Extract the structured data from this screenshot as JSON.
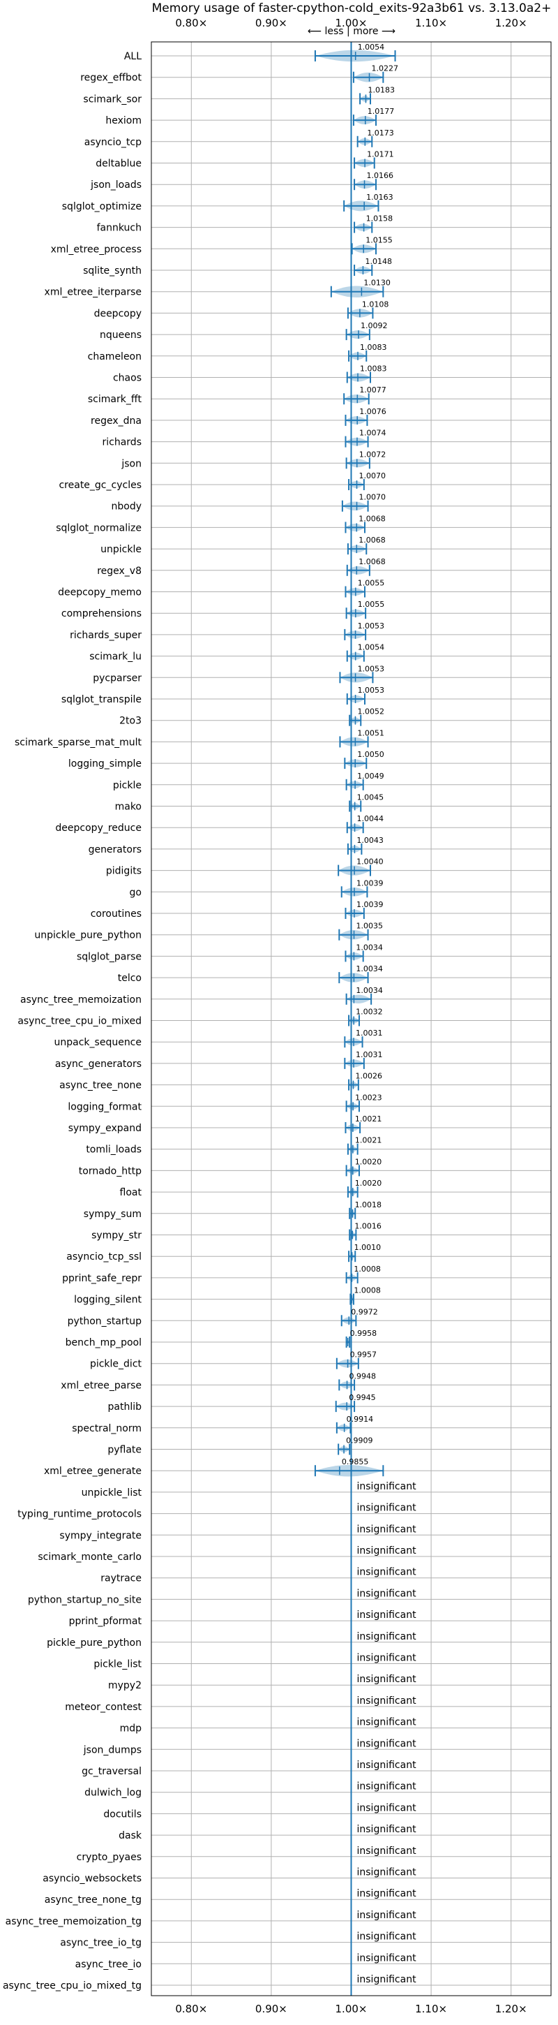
{
  "chart_data": {
    "type": "violin",
    "title": "Memory usage of faster-cpython-cold_exits-92a3b61 vs. 3.13.0a2+",
    "subtitle": "⟵ less | more ⟶",
    "xlim": [
      0.75,
      1.25
    ],
    "x_ticks": [
      0.8,
      0.9,
      1.0,
      1.1,
      1.2
    ],
    "x_tick_labels": [
      "0.80×",
      "0.90×",
      "1.00×",
      "1.10×",
      "1.20×"
    ],
    "reference_line": 1.0,
    "grid": true,
    "benchmarks": [
      {
        "name": "ALL",
        "value": 1.0054,
        "label": "1.0054",
        "low": 0.955,
        "high": 1.055
      },
      {
        "name": "regex_effbot",
        "value": 1.0227,
        "label": "1.0227",
        "low": 1.003,
        "high": 1.04
      },
      {
        "name": "scimark_sor",
        "value": 1.0183,
        "label": "1.0183",
        "low": 1.011,
        "high": 1.024
      },
      {
        "name": "hexiom",
        "value": 1.0177,
        "label": "1.0177",
        "low": 1.003,
        "high": 1.031
      },
      {
        "name": "asyncio_tcp",
        "value": 1.0173,
        "label": "1.0173",
        "low": 1.008,
        "high": 1.026
      },
      {
        "name": "deltablue",
        "value": 1.0171,
        "label": "1.0171",
        "low": 1.004,
        "high": 1.029
      },
      {
        "name": "json_loads",
        "value": 1.0166,
        "label": "1.0166",
        "low": 1.004,
        "high": 1.031
      },
      {
        "name": "sqlglot_optimize",
        "value": 1.0163,
        "label": "1.0163",
        "low": 0.991,
        "high": 1.034
      },
      {
        "name": "fannkuch",
        "value": 1.0158,
        "label": "1.0158",
        "low": 1.004,
        "high": 1.026
      },
      {
        "name": "xml_etree_process",
        "value": 1.0155,
        "label": "1.0155",
        "low": 1.001,
        "high": 1.031
      },
      {
        "name": "sqlite_synth",
        "value": 1.0148,
        "label": "1.0148",
        "low": 1.004,
        "high": 1.026
      },
      {
        "name": "xml_etree_iterparse",
        "value": 1.013,
        "label": "1.0130",
        "low": 0.975,
        "high": 1.04
      },
      {
        "name": "deepcopy",
        "value": 1.0108,
        "label": "1.0108",
        "low": 0.996,
        "high": 1.027
      },
      {
        "name": "nqueens",
        "value": 1.0092,
        "label": "1.0092",
        "low": 0.994,
        "high": 1.023
      },
      {
        "name": "chameleon",
        "value": 1.0083,
        "label": "1.0083",
        "low": 0.997,
        "high": 1.019
      },
      {
        "name": "chaos",
        "value": 1.0083,
        "label": "1.0083",
        "low": 0.995,
        "high": 1.024
      },
      {
        "name": "scimark_fft",
        "value": 1.0077,
        "label": "1.0077",
        "low": 0.991,
        "high": 1.022
      },
      {
        "name": "regex_dna",
        "value": 1.0076,
        "label": "1.0076",
        "low": 0.993,
        "high": 1.02
      },
      {
        "name": "richards",
        "value": 1.0074,
        "label": "1.0074",
        "low": 0.993,
        "high": 1.021
      },
      {
        "name": "json",
        "value": 1.0072,
        "label": "1.0072",
        "low": 0.994,
        "high": 1.023
      },
      {
        "name": "create_gc_cycles",
        "value": 1.007,
        "label": "1.0070",
        "low": 0.997,
        "high": 1.016
      },
      {
        "name": "nbody",
        "value": 1.007,
        "label": "1.0070",
        "low": 0.989,
        "high": 1.021
      },
      {
        "name": "sqlglot_normalize",
        "value": 1.0068,
        "label": "1.0068",
        "low": 0.993,
        "high": 1.017
      },
      {
        "name": "unpickle",
        "value": 1.0068,
        "label": "1.0068",
        "low": 0.996,
        "high": 1.019
      },
      {
        "name": "regex_v8",
        "value": 1.0068,
        "label": "1.0068",
        "low": 0.995,
        "high": 1.023
      },
      {
        "name": "deepcopy_memo",
        "value": 1.0055,
        "label": "1.0055",
        "low": 0.993,
        "high": 1.017
      },
      {
        "name": "comprehensions",
        "value": 1.0055,
        "label": "1.0055",
        "low": 0.994,
        "high": 1.018
      },
      {
        "name": "richards_super",
        "value": 1.0053,
        "label": "1.0053",
        "low": 0.992,
        "high": 1.018
      },
      {
        "name": "scimark_lu",
        "value": 1.0054,
        "label": "1.0054",
        "low": 0.995,
        "high": 1.016
      },
      {
        "name": "pycparser",
        "value": 1.0053,
        "label": "1.0053",
        "low": 0.986,
        "high": 1.027
      },
      {
        "name": "sqlglot_transpile",
        "value": 1.0053,
        "label": "1.0053",
        "low": 0.995,
        "high": 1.017
      },
      {
        "name": "2to3",
        "value": 1.0052,
        "label": "1.0052",
        "low": 0.998,
        "high": 1.012
      },
      {
        "name": "scimark_sparse_mat_mult",
        "value": 1.0051,
        "label": "1.0051",
        "low": 0.986,
        "high": 1.021
      },
      {
        "name": "logging_simple",
        "value": 1.005,
        "label": "1.0050",
        "low": 0.992,
        "high": 1.019
      },
      {
        "name": "pickle",
        "value": 1.0049,
        "label": "1.0049",
        "low": 0.994,
        "high": 1.015
      },
      {
        "name": "mako",
        "value": 1.0045,
        "label": "1.0045",
        "low": 0.998,
        "high": 1.012
      },
      {
        "name": "deepcopy_reduce",
        "value": 1.0044,
        "label": "1.0044",
        "low": 0.995,
        "high": 1.015
      },
      {
        "name": "generators",
        "value": 1.0043,
        "label": "1.0043",
        "low": 0.996,
        "high": 1.013
      },
      {
        "name": "pidigits",
        "value": 1.004,
        "label": "1.0040",
        "low": 0.984,
        "high": 1.024
      },
      {
        "name": "go",
        "value": 1.0039,
        "label": "1.0039",
        "low": 0.988,
        "high": 1.02
      },
      {
        "name": "coroutines",
        "value": 1.0039,
        "label": "1.0039",
        "low": 0.993,
        "high": 1.016
      },
      {
        "name": "unpickle_pure_python",
        "value": 1.0035,
        "label": "1.0035",
        "low": 0.985,
        "high": 1.021
      },
      {
        "name": "sqlglot_parse",
        "value": 1.0034,
        "label": "1.0034",
        "low": 0.993,
        "high": 1.015
      },
      {
        "name": "telco",
        "value": 1.0034,
        "label": "1.0034",
        "low": 0.985,
        "high": 1.021
      },
      {
        "name": "async_tree_memoization",
        "value": 1.0034,
        "label": "1.0034",
        "low": 0.994,
        "high": 1.025
      },
      {
        "name": "async_tree_cpu_io_mixed",
        "value": 1.0032,
        "label": "1.0032",
        "low": 0.997,
        "high": 1.01
      },
      {
        "name": "unpack_sequence",
        "value": 1.0031,
        "label": "1.0031",
        "low": 0.992,
        "high": 1.014
      },
      {
        "name": "async_generators",
        "value": 1.0031,
        "label": "1.0031",
        "low": 0.992,
        "high": 1.016
      },
      {
        "name": "async_tree_none",
        "value": 1.0026,
        "label": "1.0026",
        "low": 0.997,
        "high": 1.009
      },
      {
        "name": "logging_format",
        "value": 1.0023,
        "label": "1.0023",
        "low": 0.994,
        "high": 1.01
      },
      {
        "name": "sympy_expand",
        "value": 1.0021,
        "label": "1.0021",
        "low": 0.993,
        "high": 1.011
      },
      {
        "name": "tomli_loads",
        "value": 1.0021,
        "label": "1.0021",
        "low": 0.996,
        "high": 1.008
      },
      {
        "name": "tornado_http",
        "value": 1.002,
        "label": "1.0020",
        "low": 0.994,
        "high": 1.01
      },
      {
        "name": "float",
        "value": 1.002,
        "label": "1.0020",
        "low": 0.996,
        "high": 1.008
      },
      {
        "name": "sympy_sum",
        "value": 1.0018,
        "label": "1.0018",
        "low": 0.998,
        "high": 1.005
      },
      {
        "name": "sympy_str",
        "value": 1.0016,
        "label": "1.0016",
        "low": 0.998,
        "high": 1.006
      },
      {
        "name": "asyncio_tcp_ssl",
        "value": 1.001,
        "label": "1.0010",
        "low": 0.997,
        "high": 1.005
      },
      {
        "name": "pprint_safe_repr",
        "value": 1.0008,
        "label": "1.0008",
        "low": 0.994,
        "high": 1.008
      },
      {
        "name": "logging_silent",
        "value": 1.0008,
        "label": "1.0008",
        "low": 0.999,
        "high": 1.003
      },
      {
        "name": "python_startup",
        "value": 0.9972,
        "label": "0.9972",
        "low": 0.988,
        "high": 1.006
      },
      {
        "name": "bench_mp_pool",
        "value": 0.9958,
        "label": "0.9958",
        "low": 0.994,
        "high": 0.998
      },
      {
        "name": "pickle_dict",
        "value": 0.9957,
        "label": "0.9957",
        "low": 0.982,
        "high": 1.009
      },
      {
        "name": "xml_etree_parse",
        "value": 0.9948,
        "label": "0.9948",
        "low": 0.985,
        "high": 1.004
      },
      {
        "name": "pathlib",
        "value": 0.9945,
        "label": "0.9945",
        "low": 0.981,
        "high": 1.004
      },
      {
        "name": "spectral_norm",
        "value": 0.9914,
        "label": "0.9914",
        "low": 0.982,
        "high": 0.999
      },
      {
        "name": "pyflate",
        "value": 0.9909,
        "label": "0.9909",
        "low": 0.984,
        "high": 0.998
      },
      {
        "name": "xml_etree_generate",
        "value": 0.9855,
        "label": "0.9855",
        "low": 0.955,
        "high": 1.04
      },
      {
        "name": "unpickle_list",
        "insignificant": true
      },
      {
        "name": "typing_runtime_protocols",
        "insignificant": true
      },
      {
        "name": "sympy_integrate",
        "insignificant": true
      },
      {
        "name": "scimark_monte_carlo",
        "insignificant": true
      },
      {
        "name": "raytrace",
        "insignificant": true
      },
      {
        "name": "python_startup_no_site",
        "insignificant": true
      },
      {
        "name": "pprint_pformat",
        "insignificant": true
      },
      {
        "name": "pickle_pure_python",
        "insignificant": true
      },
      {
        "name": "pickle_list",
        "insignificant": true
      },
      {
        "name": "mypy2",
        "insignificant": true
      },
      {
        "name": "meteor_contest",
        "insignificant": true
      },
      {
        "name": "mdp",
        "insignificant": true
      },
      {
        "name": "json_dumps",
        "insignificant": true
      },
      {
        "name": "gc_traversal",
        "insignificant": true
      },
      {
        "name": "dulwich_log",
        "insignificant": true
      },
      {
        "name": "docutils",
        "insignificant": true
      },
      {
        "name": "dask",
        "insignificant": true
      },
      {
        "name": "crypto_pyaes",
        "insignificant": true
      },
      {
        "name": "asyncio_websockets",
        "insignificant": true
      },
      {
        "name": "async_tree_none_tg",
        "insignificant": true
      },
      {
        "name": "async_tree_memoization_tg",
        "insignificant": true
      },
      {
        "name": "async_tree_io_tg",
        "insignificant": true
      },
      {
        "name": "async_tree_io",
        "insignificant": true
      },
      {
        "name": "async_tree_cpu_io_mixed_tg",
        "insignificant": true
      }
    ],
    "insignificant_label": "insignificant"
  }
}
